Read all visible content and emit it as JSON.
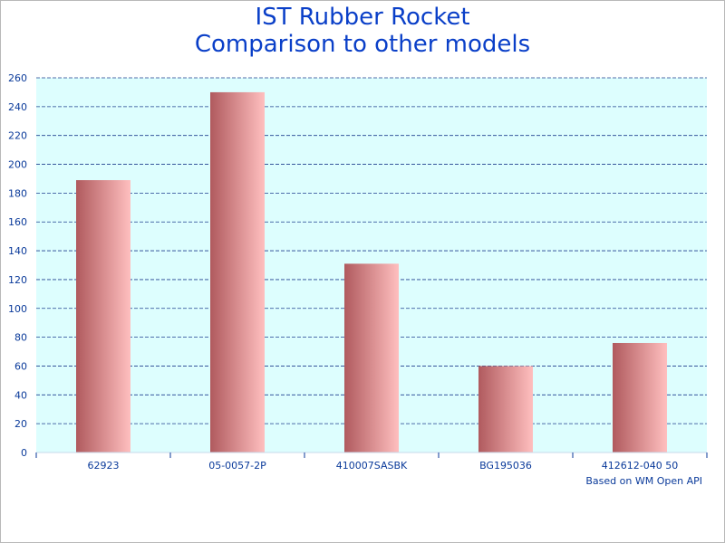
{
  "chart_data": {
    "type": "bar",
    "title_lines": [
      "IST Rubber Rocket",
      "Comparison to other models"
    ],
    "categories": [
      "62923",
      "05-0057-2P",
      "410007SASBK",
      "BG195036",
      "412612-040 50"
    ],
    "values": [
      189,
      250,
      131,
      60,
      76
    ],
    "ylim": [
      0,
      260
    ],
    "yticks": [
      0,
      20,
      40,
      60,
      80,
      100,
      120,
      140,
      160,
      180,
      200,
      220,
      240,
      260
    ],
    "xlabel": "",
    "ylabel": "",
    "grid": true,
    "footnote": "Based on WM Open API"
  },
  "colors": {
    "plot_background": "#ddfefe",
    "grid": "#1f3f8f",
    "bar_dark": "#b05a5e",
    "bar_light": "#ffbfbf",
    "title": "#0a3fc8",
    "axis_text": "#0a3a9a"
  }
}
